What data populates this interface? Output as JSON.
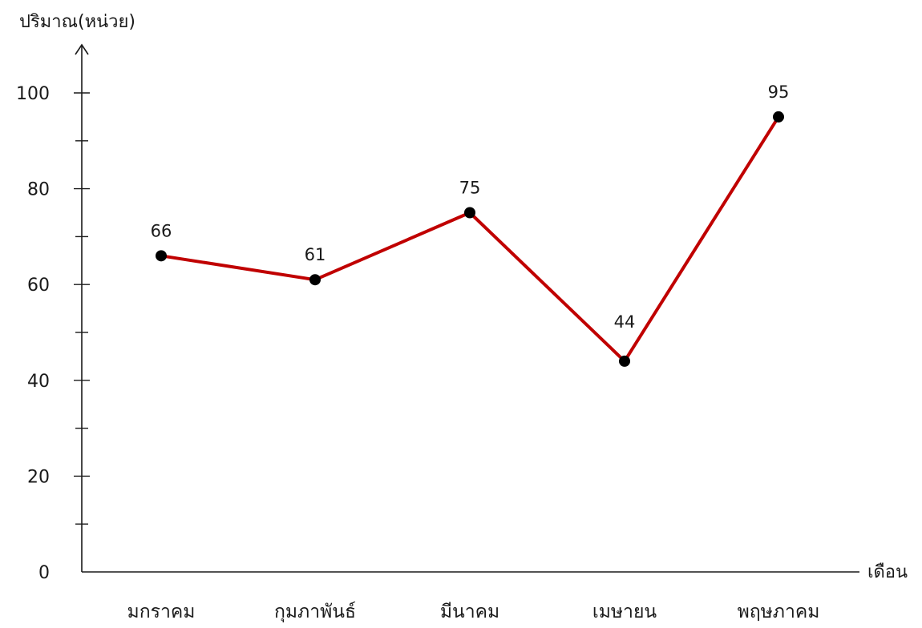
{
  "chart_data": {
    "type": "line",
    "ylabel": "ปริมาณ(หน่วย)",
    "xlabel": "เดือน",
    "categories": [
      "มกราคม",
      "กุมภาพันธ์",
      "มีนาคม",
      "เมษายน",
      "พฤษภาคม"
    ],
    "series": [
      {
        "values": [
          66,
          61,
          75,
          44,
          95
        ]
      }
    ],
    "data_labels": [
      "66",
      "61",
      "75",
      "44",
      "95"
    ],
    "ylim": [
      0,
      110
    ],
    "y_ticks": [
      0,
      20,
      40,
      60,
      80,
      100
    ],
    "y_minor_ticks": [
      10,
      30,
      50,
      70,
      90
    ],
    "y_tick_labels": [
      "0",
      "20",
      "40",
      "60",
      "80",
      "100"
    ],
    "grid": false,
    "legend": "none",
    "colors": {
      "line": "#c00000",
      "marker": "#000000",
      "axis": "#1a1a1a"
    }
  }
}
